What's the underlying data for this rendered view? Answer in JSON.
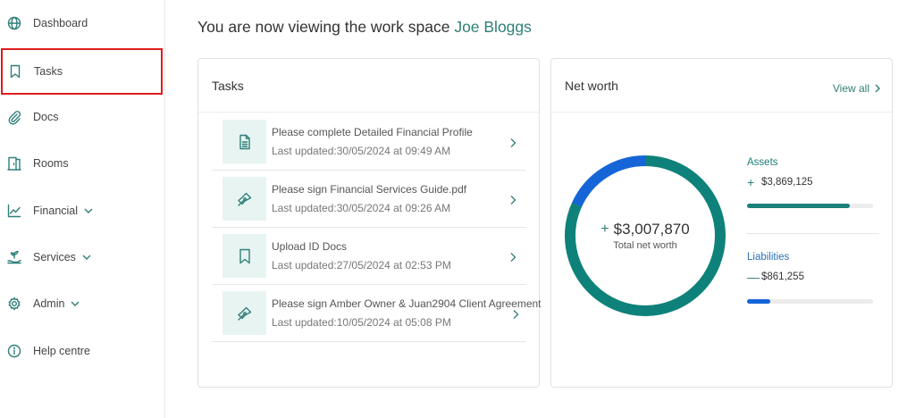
{
  "sidebar": {
    "items": [
      {
        "label": "Dashboard",
        "icon": "globe-icon",
        "has_chevron": false
      },
      {
        "label": "Tasks",
        "icon": "bookmark-icon",
        "has_chevron": false,
        "selected": true
      },
      {
        "label": "Docs",
        "icon": "paperclip-icon",
        "has_chevron": false
      },
      {
        "label": "Rooms",
        "icon": "door-icon",
        "has_chevron": false
      },
      {
        "label": "Financial",
        "icon": "trend-chart-icon",
        "has_chevron": true
      },
      {
        "label": "Services",
        "icon": "plant-hand-icon",
        "has_chevron": true
      },
      {
        "label": "Admin",
        "icon": "gear-icon",
        "has_chevron": true
      },
      {
        "label": "Help centre",
        "icon": "info-icon",
        "has_chevron": false
      }
    ]
  },
  "header": {
    "prefix": "You are now viewing the work space",
    "workspace_name": "Joe Bloggs"
  },
  "tasks": {
    "title": "Tasks",
    "items": [
      {
        "title": "Please complete Detailed Financial Profile",
        "date": "Last updated:30/05/2024 at 09:49 AM",
        "icon": "document-icon"
      },
      {
        "title": "Please sign Financial Services Guide.pdf",
        "date": "Last updated:30/05/2024 at 09:26 AM",
        "icon": "pen-nib-icon"
      },
      {
        "title": "Upload ID Docs",
        "date": "Last updated:27/05/2024 at 02:53 PM",
        "icon": "bookmark-icon"
      },
      {
        "title": "Please sign Amber Owner & Juan2904 Client Agreement",
        "date": "Last updated:10/05/2024 at 05:08 PM",
        "icon": "pen-nib-icon"
      }
    ]
  },
  "networth": {
    "title": "Net worth",
    "view_all": "View all",
    "total_sign": "+",
    "total_value": "$3,007,870",
    "total_label": "Total net worth",
    "assets": {
      "label": "Assets",
      "sign": "+",
      "amount": "$3,869,125",
      "fraction": 0.818,
      "color": "#1a8078"
    },
    "liabilities": {
      "label": "Liabilities",
      "sign": "—",
      "amount": "$861,255",
      "fraction": 0.182,
      "color": "#1565d8"
    },
    "colors": {
      "accent": "#2f7f78",
      "donut_assets": "#0e827a",
      "donut_liabilities": "#1565d8"
    }
  }
}
